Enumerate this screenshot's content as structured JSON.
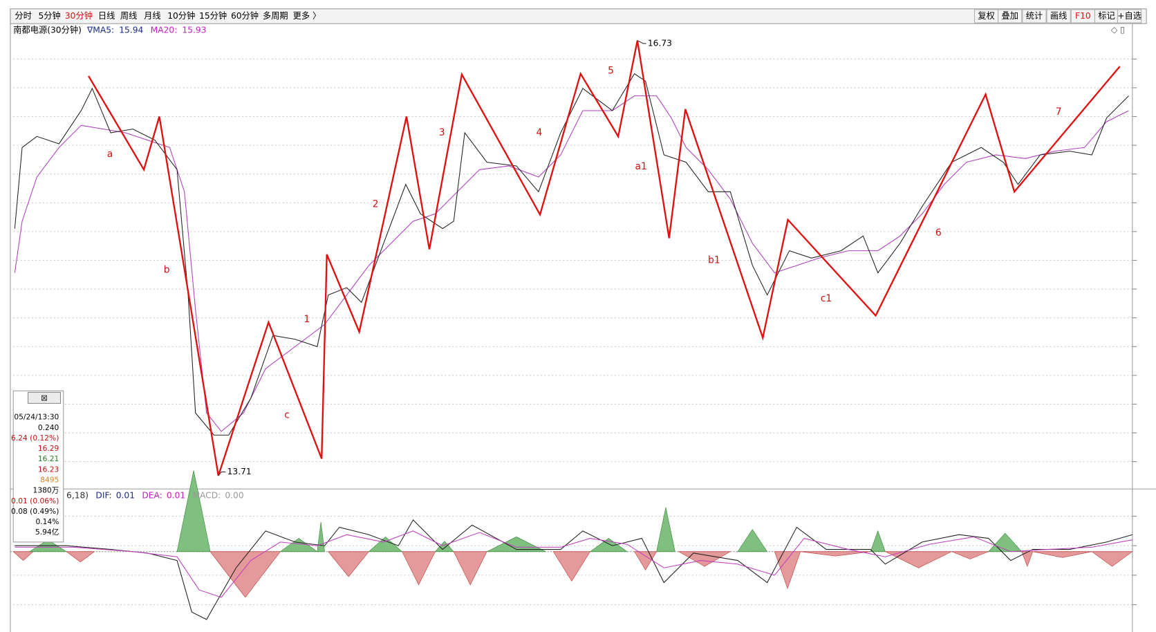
{
  "toolbar": {
    "periods": [
      "分时",
      "5分钟",
      "30分钟",
      "日线",
      "周线",
      "月线",
      "10分钟",
      "15分钟",
      "60分钟",
      "多周期",
      "更多 〉"
    ],
    "active_index": 2,
    "tools": [
      "复权",
      "叠加",
      "统计",
      "画线",
      "F10",
      "标记",
      "+自选"
    ]
  },
  "header": {
    "title": "南都电源(30分钟)",
    "ma5_label": "∇MA5:",
    "ma5": 15.94,
    "ma20_label": "MA20:",
    "ma20": 15.93
  },
  "price_marks": {
    "high": 16.73,
    "low": 13.71
  },
  "wave_labels": [
    "a",
    "b",
    "c",
    "1",
    "2",
    "3",
    "4",
    "5",
    "a1",
    "b1",
    "c1",
    "6",
    "7"
  ],
  "info_panel": [
    "05/24/13:30",
    "0.240",
    "6.24 (0.12%)",
    "16.29",
    "16.21",
    "16.23",
    "8495",
    "1380万",
    "0.01 (0.06%)",
    "0.08 (0.49%)",
    "0.14%",
    "5.94亿"
  ],
  "macd": {
    "params": "6,18)",
    "dif_label": "DIF:",
    "dif": 0.01,
    "dea_label": "DEA:",
    "dea": 0.01,
    "macd_label": "MACD:",
    "macd": "0.00"
  }
}
